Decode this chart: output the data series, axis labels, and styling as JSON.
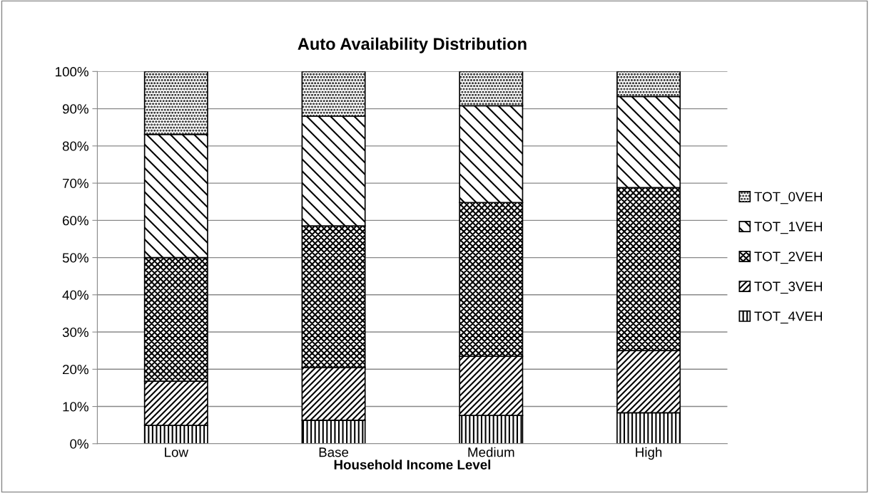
{
  "chart_data": {
    "type": "bar",
    "stacked": true,
    "title": "Auto Availability Distribution",
    "xlabel": "Household Income Level",
    "categories": [
      "Low",
      "Base",
      "Medium",
      "High"
    ],
    "series": [
      {
        "name": "TOT_4VEH",
        "color": "#000000",
        "values": [
          4.9,
          6.3,
          7.6,
          8.3
        ]
      },
      {
        "name": "TOT_3VEH",
        "color": "#000000",
        "values": [
          11.9,
          14.2,
          15.9,
          16.7
        ]
      },
      {
        "name": "TOT_2VEH",
        "color": "#000000",
        "values": [
          33.2,
          38.0,
          41.3,
          43.8
        ]
      },
      {
        "name": "TOT_1VEH",
        "color": "#000000",
        "values": [
          33.1,
          29.5,
          26.0,
          24.5
        ]
      },
      {
        "name": "TOT_0VEH",
        "color": "#000000",
        "values": [
          16.9,
          12.0,
          9.2,
          6.7
        ]
      }
    ],
    "ylim": [
      0,
      100
    ],
    "yticks": [
      {
        "value": 0,
        "label": "0%"
      },
      {
        "value": 10,
        "label": "10%"
      },
      {
        "value": 20,
        "label": "20%"
      },
      {
        "value": 30,
        "label": "30%"
      },
      {
        "value": 40,
        "label": "40%"
      },
      {
        "value": 50,
        "label": "50%"
      },
      {
        "value": 60,
        "label": "60%"
      },
      {
        "value": 70,
        "label": "70%"
      },
      {
        "value": 80,
        "label": "80%"
      },
      {
        "value": 90,
        "label": "90%"
      },
      {
        "value": 100,
        "label": "100%"
      }
    ],
    "grid": "y",
    "legend": "right"
  }
}
